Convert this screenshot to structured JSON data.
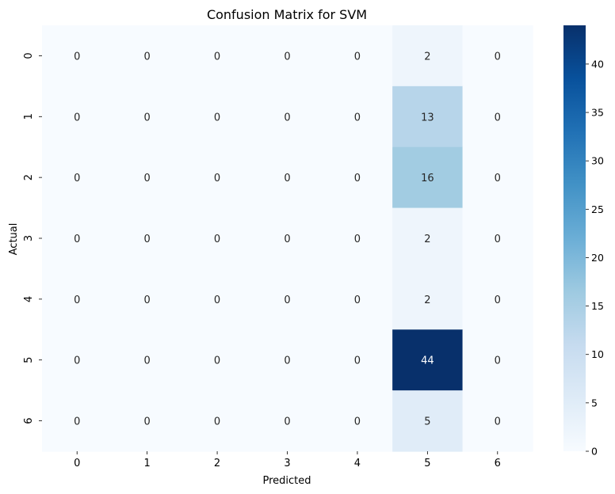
{
  "chart_data": {
    "type": "heatmap",
    "title": "Confusion Matrix for SVM",
    "xlabel": "Predicted",
    "ylabel": "Actual",
    "x_categories": [
      "0",
      "1",
      "2",
      "3",
      "4",
      "5",
      "6"
    ],
    "y_categories": [
      "0",
      "1",
      "2",
      "3",
      "4",
      "5",
      "6"
    ],
    "values": [
      [
        0,
        0,
        0,
        0,
        0,
        2,
        0
      ],
      [
        0,
        0,
        0,
        0,
        0,
        13,
        0
      ],
      [
        0,
        0,
        0,
        0,
        0,
        16,
        0
      ],
      [
        0,
        0,
        0,
        0,
        0,
        2,
        0
      ],
      [
        0,
        0,
        0,
        0,
        0,
        2,
        0
      ],
      [
        0,
        0,
        0,
        0,
        0,
        44,
        0
      ],
      [
        0,
        0,
        0,
        0,
        0,
        5,
        0
      ]
    ],
    "colormap": "Blues",
    "colorbar": {
      "range": [
        0,
        44
      ],
      "ticks": [
        "0",
        "5",
        "10",
        "15",
        "20",
        "25",
        "30",
        "35",
        "40"
      ]
    },
    "annotations": true
  }
}
